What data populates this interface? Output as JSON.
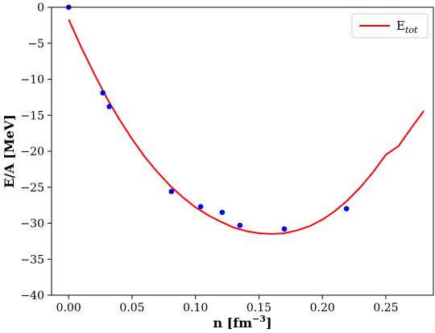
{
  "chart_data": {
    "type": "scatter",
    "xlabel": {
      "main": "n [fm",
      "sup": "−3",
      "close": "]"
    },
    "ylabel": "E/A [MeV]",
    "xlim": [
      -0.0135,
      0.2875
    ],
    "ylim": [
      -40,
      0
    ],
    "x_ticks": [
      0.0,
      0.05,
      0.1,
      0.15,
      0.2,
      0.25
    ],
    "x_tick_labels": [
      "0.00",
      "0.05",
      "0.10",
      "0.15",
      "0.20",
      "0.25"
    ],
    "y_ticks": [
      0,
      -5,
      -10,
      -15,
      -20,
      -25,
      -30,
      -35,
      -40
    ],
    "y_tick_labels": [
      "0",
      "−5",
      "−10",
      "−15",
      "−20",
      "−25",
      "−30",
      "−35",
      "−40"
    ],
    "grid": false,
    "legend": {
      "placement": "top-right",
      "entry_main": "E",
      "entry_sub": "tot"
    },
    "series": [
      {
        "kind": "points",
        "color": "#0000ff",
        "x": [
          0.0,
          0.027,
          0.032,
          0.081,
          0.104,
          0.121,
          0.135,
          0.17,
          0.219
        ],
        "y": [
          0.0,
          -11.9,
          -13.8,
          -25.6,
          -27.7,
          -28.5,
          -30.3,
          -30.8,
          -28.0
        ]
      },
      {
        "kind": "fit-line",
        "color": "#ff0000",
        "x": [
          0.0,
          0.01,
          0.02,
          0.03,
          0.04,
          0.05,
          0.06,
          0.07,
          0.08,
          0.09,
          0.1,
          0.11,
          0.12,
          0.13,
          0.14,
          0.15,
          0.16,
          0.17,
          0.18,
          0.19,
          0.2,
          0.21,
          0.22,
          0.23,
          0.24,
          0.25,
          0.26,
          0.27,
          0.28
        ],
        "y": [
          -1.7,
          -5.6,
          -9.2,
          -12.6,
          -15.6,
          -18.3,
          -20.8,
          -22.9,
          -24.8,
          -26.4,
          -27.8,
          -28.9,
          -29.8,
          -30.6,
          -31.1,
          -31.4,
          -31.5,
          -31.4,
          -31.0,
          -30.4,
          -29.5,
          -28.3,
          -26.8,
          -25.0,
          -22.9,
          -20.5,
          -19.3,
          -16.8,
          -14.4
        ]
      }
    ]
  }
}
